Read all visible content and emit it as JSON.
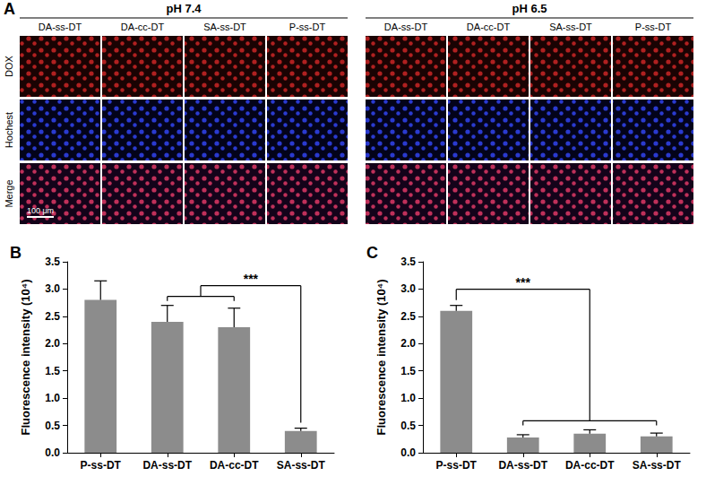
{
  "panel_a": {
    "label": "A",
    "groups": [
      {
        "title": "pH 7.4",
        "columns": [
          "DA-ss-DT",
          "DA-cc-DT",
          "SA-ss-DT",
          "P-ss-DT"
        ]
      },
      {
        "title": "pH 6.5",
        "columns": [
          "DA-ss-DT",
          "DA-cc-DT",
          "SA-ss-DT",
          "P-ss-DT"
        ]
      }
    ],
    "rows": [
      "DOX",
      "Hochest",
      "Merge"
    ],
    "scale_bar": "100 μm"
  },
  "chart_data": [
    {
      "type": "bar",
      "title": "B",
      "categories": [
        "P-ss-DT",
        "DA-ss-DT",
        "DA-cc-DT",
        "SA-ss-DT"
      ],
      "values": [
        2.8,
        2.4,
        2.3,
        0.4
      ],
      "errors": [
        0.35,
        0.3,
        0.35,
        0.05
      ],
      "color": "#8c8c8c",
      "y_label": "Fluorescence intensity (10⁴)",
      "ylim": [
        0,
        3.5
      ],
      "yticks": [
        {
          "value": 0,
          "label": "0.0"
        },
        {
          "value": 0.5,
          "label": "0.5"
        },
        {
          "value": 1,
          "label": "1.0"
        },
        {
          "value": 1.5,
          "label": "1.5"
        },
        {
          "value": 2,
          "label": "2.0"
        },
        {
          "value": 2.5,
          "label": "2.5"
        },
        {
          "value": 3,
          "label": "3.0"
        },
        {
          "value": 3.5,
          "label": "3.5"
        }
      ],
      "grid": false,
      "annotations": [
        {
          "text": "***",
          "from": [
            "DA-ss-DT",
            "DA-cc-DT"
          ],
          "to": [
            "SA-ss-DT"
          ]
        }
      ]
    },
    {
      "type": "bar",
      "title": "C",
      "categories": [
        "P-ss-DT",
        "DA-ss-DT",
        "DA-cc-DT",
        "SA-ss-DT"
      ],
      "values": [
        2.6,
        0.28,
        0.35,
        0.3
      ],
      "errors": [
        0.1,
        0.05,
        0.07,
        0.06
      ],
      "color": "#8c8c8c",
      "y_label": "Fluorescence intensity (10⁴)",
      "ylim": [
        0,
        3.5
      ],
      "yticks": [
        {
          "value": 0,
          "label": "0.0"
        },
        {
          "value": 0.5,
          "label": "0.5"
        },
        {
          "value": 1,
          "label": "1.0"
        },
        {
          "value": 1.5,
          "label": "1.5"
        },
        {
          "value": 2,
          "label": "2.0"
        },
        {
          "value": 2.5,
          "label": "2.5"
        },
        {
          "value": 3,
          "label": "3.0"
        },
        {
          "value": 3.5,
          "label": "3.5"
        }
      ],
      "grid": false,
      "annotations": [
        {
          "text": "***",
          "from": [
            "P-ss-DT"
          ],
          "to": [
            "DA-ss-DT",
            "DA-cc-DT",
            "SA-ss-DT"
          ]
        }
      ]
    }
  ]
}
